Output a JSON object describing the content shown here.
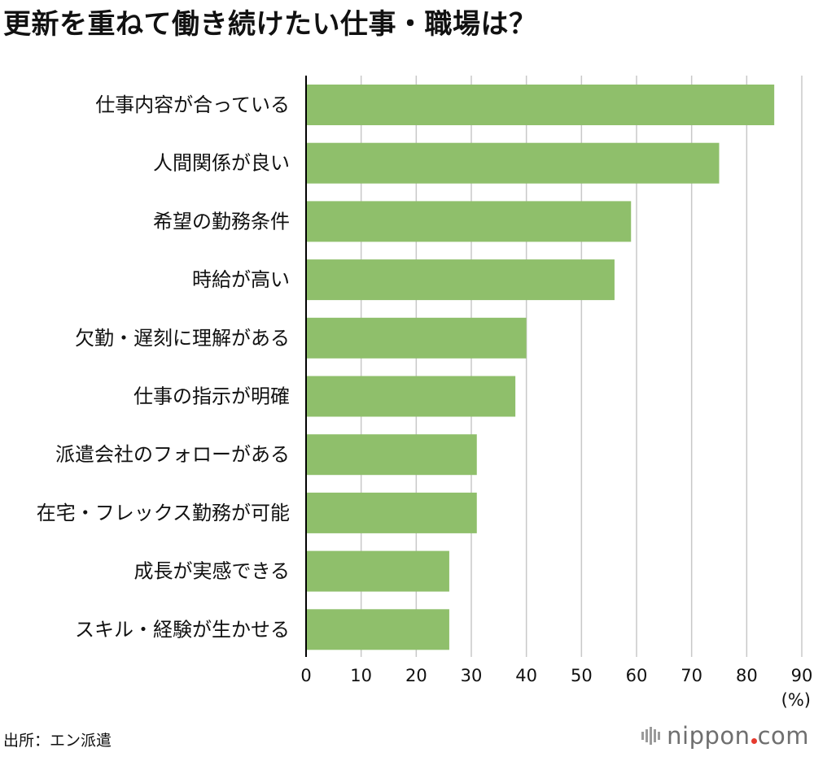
{
  "title": "更新を重ねて働き続けたい仕事・職場は？",
  "source": "出所：エン派遣",
  "logo": {
    "text_left": "nippon",
    "text_right": "com",
    "dot_color": "#e63a2e"
  },
  "colors": {
    "bar": "#8fbf6b",
    "grid": "#c8c8c8",
    "axis": "#000000"
  },
  "chart_data": {
    "type": "bar",
    "orientation": "horizontal",
    "categories": [
      "仕事内容が合っている",
      "人間関係が良い",
      "希望の勤務条件",
      "時給が高い",
      "欠勤・遅刻に理解がある",
      "仕事の指示が明確",
      "派遣会社のフォローがある",
      "在宅・フレックス勤務が可能",
      "成長が実感できる",
      "スキル・経験が生かせる"
    ],
    "values": [
      85,
      75,
      59,
      56,
      40,
      38,
      31,
      31,
      26,
      26
    ],
    "xlim": [
      0,
      90
    ],
    "xticks": [
      0,
      10,
      20,
      30,
      40,
      50,
      60,
      70,
      80,
      90
    ],
    "unit_label": "(%)",
    "grid": true
  }
}
